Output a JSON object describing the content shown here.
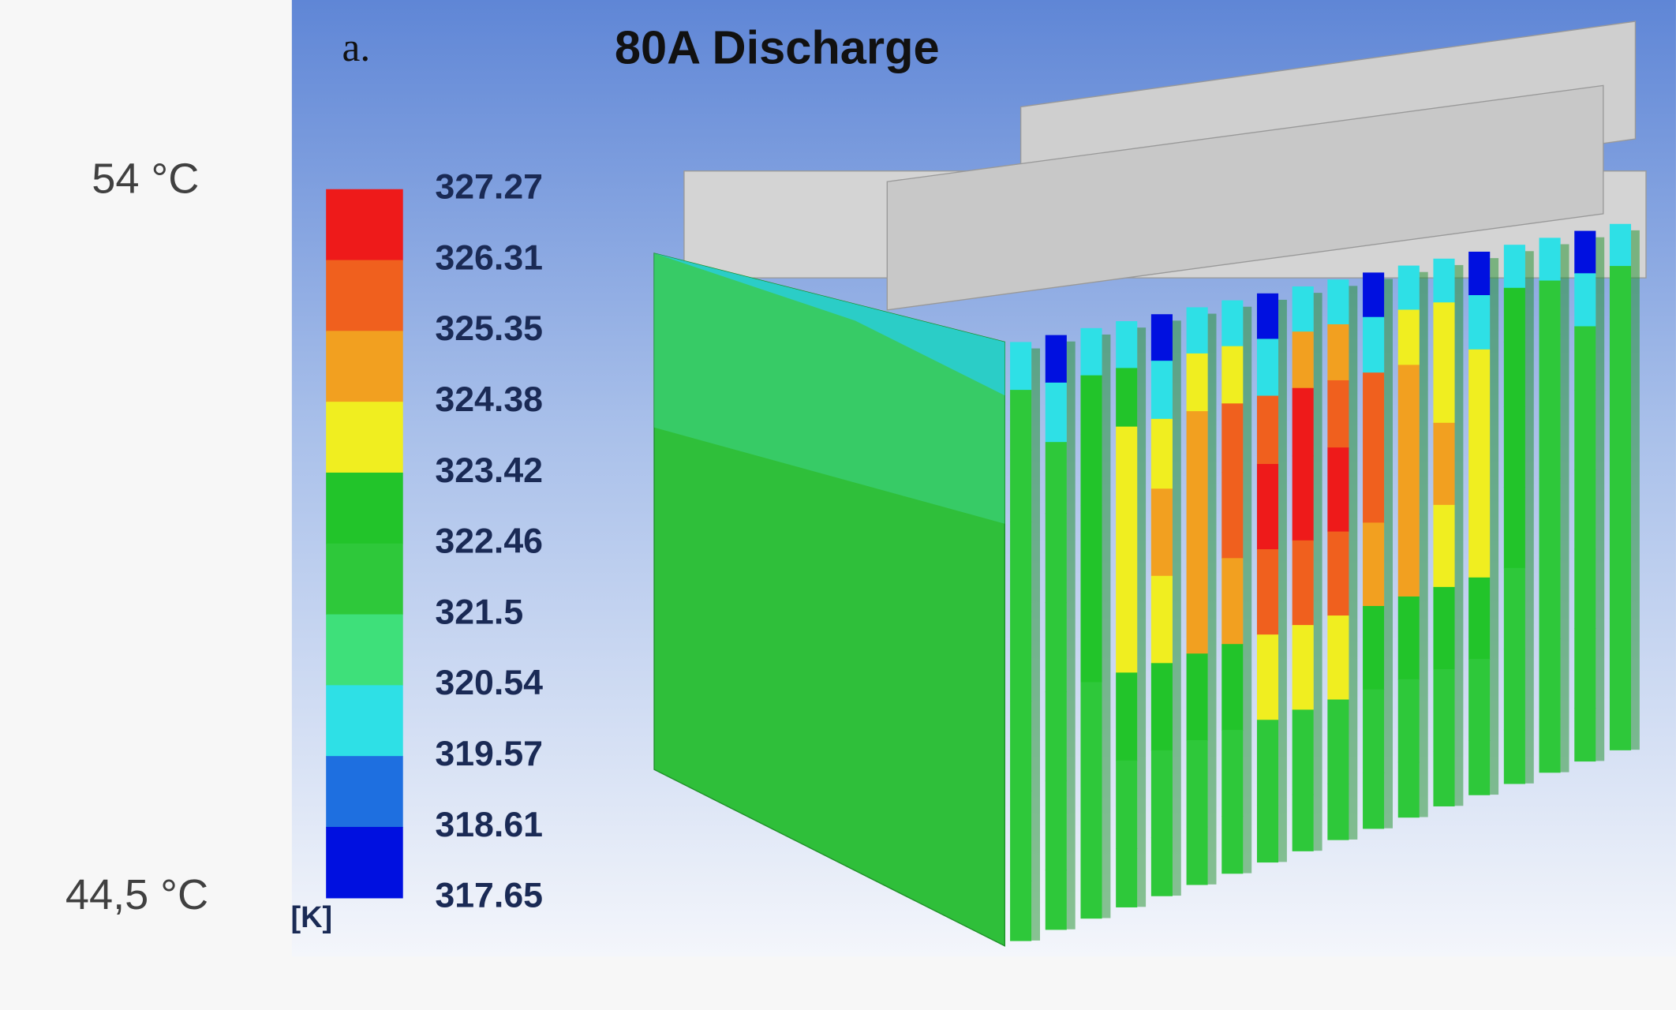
{
  "side_labels": {
    "top": "54 °C",
    "bottom": "44,5 °C"
  },
  "figure": {
    "panel_label": "a.",
    "title": "80A Discharge",
    "legend": {
      "unit": "[K]",
      "levels": [
        "327.27",
        "326.31",
        "325.35",
        "324.38",
        "323.42",
        "322.46",
        "321.5",
        "320.54",
        "319.57",
        "318.61",
        "317.65"
      ]
    }
  }
}
